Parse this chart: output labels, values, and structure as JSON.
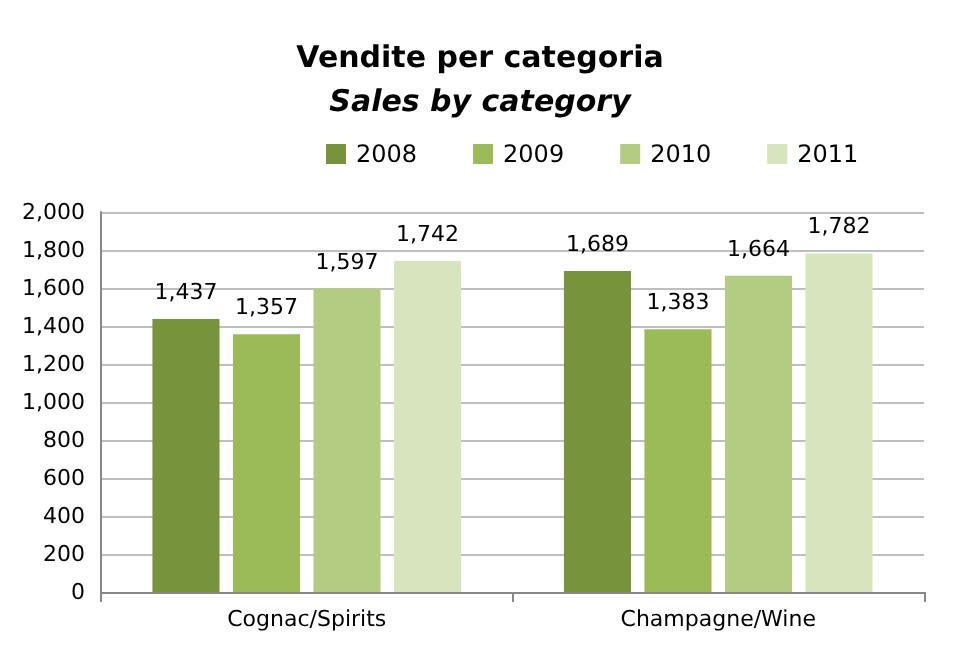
{
  "chart_data": {
    "type": "bar",
    "title": "Vendite per categoria",
    "subtitle": "Sales by category",
    "categories": [
      "Cognac/Spirits",
      "Champagne/Wine"
    ],
    "series": [
      {
        "name": "2008",
        "color": "#77933c",
        "values": [
          1437,
          1689
        ],
        "value_labels": [
          "1,437",
          "1,689"
        ]
      },
      {
        "name": "2009",
        "color": "#9bbb59",
        "values": [
          1357,
          1383
        ],
        "value_labels": [
          "1,357",
          "1,383"
        ]
      },
      {
        "name": "2010",
        "color": "#b3cc82",
        "values": [
          1597,
          1664
        ],
        "value_labels": [
          "1,597",
          "1,664"
        ]
      },
      {
        "name": "2011",
        "color": "#d7e4bd",
        "values": [
          1742,
          1782
        ],
        "value_labels": [
          "1,742",
          "1,782"
        ]
      }
    ],
    "ylim": [
      0,
      2000
    ],
    "yticks": [
      0,
      200,
      400,
      600,
      800,
      {
        "value": 1000,
        "label": "1,000"
      },
      {
        "value": 1200,
        "label": "1,200"
      },
      {
        "value": 1400,
        "label": "1,400"
      },
      {
        "value": 1600,
        "label": "1,600"
      },
      {
        "value": 1800,
        "label": "1,800"
      },
      {
        "value": 2000,
        "label": "2,000"
      }
    ],
    "grid": "y",
    "legend": "top"
  }
}
